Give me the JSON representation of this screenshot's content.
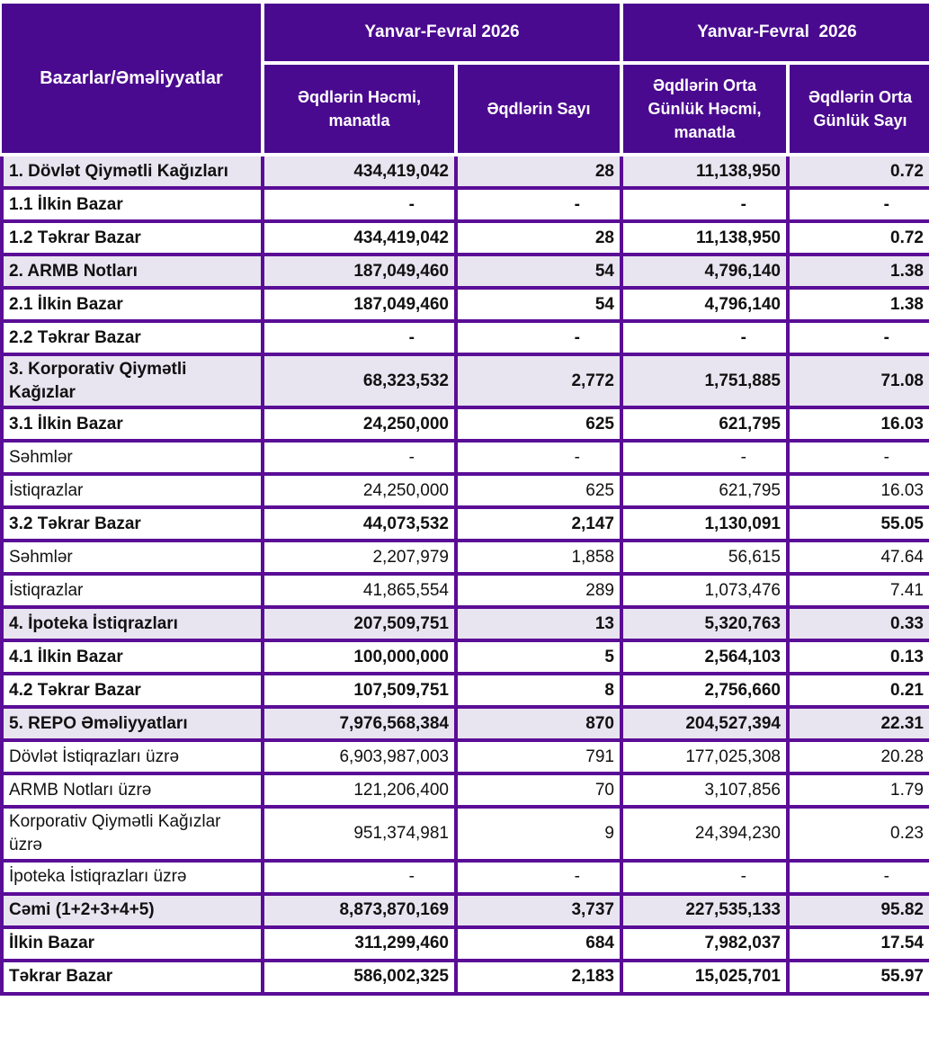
{
  "table": {
    "corner_header": "Bazarlar/Əməliyyatlar",
    "column_groups": [
      {
        "label": "Yanvar-Fevral 2026"
      },
      {
        "label": "Yanvar-Fevral  2026"
      }
    ],
    "columns": [
      "Əqdlərin Həcmi, manatla",
      "Əqdlərin Sayı",
      "Əqdlərin Orta Günlük Həcmi, manatla",
      "Əqdlərin Orta Günlük Sayı"
    ],
    "rows": [
      {
        "label": "1. Dövlət Qiymətli Kağızları",
        "style": "section",
        "values": [
          "434,419,042",
          "28",
          "11,138,950",
          "0.72"
        ]
      },
      {
        "label": "1.1 İlkin Bazar",
        "style": "sub",
        "values": [
          "-",
          "-",
          "-",
          "-"
        ]
      },
      {
        "label": "1.2 Təkrar Bazar",
        "style": "sub",
        "values": [
          "434,419,042",
          "28",
          "11,138,950",
          "0.72"
        ]
      },
      {
        "label": "2. ARMB Notları",
        "style": "section",
        "values": [
          "187,049,460",
          "54",
          "4,796,140",
          "1.38"
        ]
      },
      {
        "label": "2.1 İlkin Bazar",
        "style": "sub",
        "values": [
          "187,049,460",
          "54",
          "4,796,140",
          "1.38"
        ]
      },
      {
        "label": "2.2 Təkrar Bazar",
        "style": "sub",
        "values": [
          "-",
          "-",
          "-",
          "-"
        ]
      },
      {
        "label": "3. Korporativ Qiymətli Kağızlar",
        "style": "section",
        "values": [
          "68,323,532",
          "2,772",
          "1,751,885",
          "71.08"
        ]
      },
      {
        "label": "3.1 İlkin Bazar",
        "style": "sub",
        "values": [
          "24,250,000",
          "625",
          "621,795",
          "16.03"
        ]
      },
      {
        "label": "Səhmlər",
        "style": "detail",
        "values": [
          "-",
          "-",
          "-",
          "-"
        ]
      },
      {
        "label": "İstiqrazlar",
        "style": "detail",
        "values": [
          "24,250,000",
          "625",
          "621,795",
          "16.03"
        ]
      },
      {
        "label": "3.2 Təkrar Bazar",
        "style": "sub",
        "values": [
          "44,073,532",
          "2,147",
          "1,130,091",
          "55.05"
        ]
      },
      {
        "label": "Səhmlər",
        "style": "detail",
        "values": [
          "2,207,979",
          "1,858",
          "56,615",
          "47.64"
        ]
      },
      {
        "label": "İstiqrazlar",
        "style": "detail",
        "values": [
          "41,865,554",
          "289",
          "1,073,476",
          "7.41"
        ]
      },
      {
        "label": "4. İpoteka İstiqrazları",
        "style": "section",
        "values": [
          "207,509,751",
          "13",
          "5,320,763",
          "0.33"
        ]
      },
      {
        "label": "4.1 İlkin Bazar",
        "style": "sub",
        "values": [
          "100,000,000",
          "5",
          "2,564,103",
          "0.13"
        ]
      },
      {
        "label": "4.2 Təkrar Bazar",
        "style": "sub",
        "values": [
          "107,509,751",
          "8",
          "2,756,660",
          "0.21"
        ]
      },
      {
        "label": "5. REPO Əməliyyatları",
        "style": "section",
        "values": [
          "7,976,568,384",
          "870",
          "204,527,394",
          "22.31"
        ]
      },
      {
        "label": "Dövlət İstiqrazları üzrə",
        "style": "detail",
        "values": [
          "6,903,987,003",
          "791",
          "177,025,308",
          "20.28"
        ]
      },
      {
        "label": "ARMB Notları üzrə",
        "style": "detail",
        "values": [
          "121,206,400",
          "70",
          "3,107,856",
          "1.79"
        ]
      },
      {
        "label": "Korporativ Qiymətli Kağızlar üzrə",
        "style": "detail",
        "values": [
          "951,374,981",
          "9",
          "24,394,230",
          "0.23"
        ]
      },
      {
        "label": "İpoteka İstiqrazları üzrə",
        "style": "detail",
        "values": [
          "-",
          "-",
          "-",
          "-"
        ]
      },
      {
        "label": "Cəmi (1+2+3+4+5)",
        "style": "total",
        "values": [
          "8,873,870,169",
          "3,737",
          "227,535,133",
          "95.82"
        ]
      },
      {
        "label": "İlkin Bazar",
        "style": "sub",
        "values": [
          "311,299,460",
          "684",
          "7,982,037",
          "17.54"
        ]
      },
      {
        "label": "Təkrar Bazar",
        "style": "sub",
        "values": [
          "586,002,325",
          "2,183",
          "15,025,701",
          "55.97"
        ]
      }
    ],
    "colors": {
      "header_bg": "#4A0A8F",
      "border": "#5A0D96",
      "section_bg": "#E8E4F0",
      "header_text": "#FFFFFF",
      "body_text": "#111111"
    }
  }
}
